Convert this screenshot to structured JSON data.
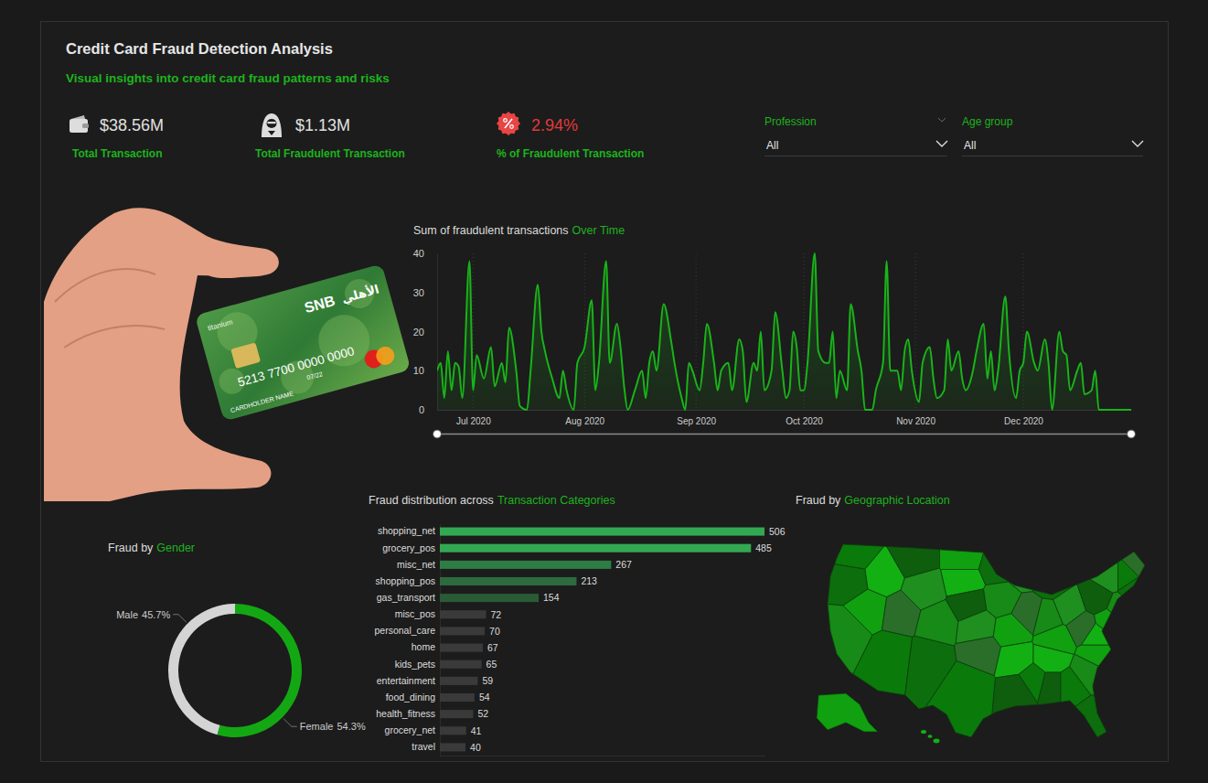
{
  "header": {
    "title": "Credit Card Fraud Detection Analysis",
    "subtitle": "Visual insights into credit card fraud patterns and risks"
  },
  "kpis": [
    {
      "value": "$38.56M",
      "label": "Total Transaction"
    },
    {
      "value": "$1.13M",
      "label": "Total Fraudulent Transaction"
    },
    {
      "value": "2.94%",
      "label": "% of Fraudulent Transaction"
    }
  ],
  "filters": [
    {
      "label": "Profession",
      "value": "All"
    },
    {
      "label": "Age group",
      "value": "All"
    }
  ],
  "card_image": {
    "tier": "titanium",
    "brand": "SNB",
    "brand_arabic": "الأهلي",
    "number": "5213 7700 0000 0000",
    "expiry": "07/22",
    "holder": "CARDHOLDER NAME"
  },
  "chart_data": [
    {
      "type": "line",
      "title": [
        "Sum of fraudulent transactions",
        "Over Time"
      ],
      "x": [
        173,
        174,
        175,
        176,
        177,
        178,
        179,
        180,
        182,
        183,
        184,
        186,
        188,
        189,
        191,
        192,
        193,
        195,
        196,
        198,
        199,
        201,
        202,
        203,
        205,
        207,
        208,
        209,
        211,
        212,
        214,
        216,
        217,
        218,
        220,
        221,
        223,
        224,
        225,
        226,
        228,
        230,
        231,
        232,
        233,
        234,
        236,
        238,
        239,
        241,
        242,
        243,
        244,
        246,
        247,
        248,
        250,
        251,
        252,
        254,
        255,
        257,
        258,
        259,
        261,
        262,
        263,
        264,
        266,
        267,
        269,
        270,
        271,
        272,
        273,
        274,
        275,
        276,
        278,
        279,
        281,
        282,
        283,
        284,
        285,
        287,
        288,
        290,
        291,
        292,
        294,
        295,
        297,
        298,
        299,
        301,
        302,
        303,
        304,
        305,
        307,
        308,
        310,
        311,
        312,
        314,
        315,
        316,
        318,
        319,
        320,
        322,
        323,
        325,
        326,
        327,
        328,
        329,
        331,
        332,
        334,
        335,
        336,
        337,
        339,
        340,
        342,
        343,
        344,
        346,
        347,
        348,
        349,
        351,
        352,
        353,
        355,
        356,
        357,
        359,
        362,
        366
      ],
      "values": [
        10,
        12,
        3,
        15,
        5,
        12,
        11,
        3,
        38,
        5,
        14,
        8,
        16,
        6,
        12,
        7,
        21,
        10,
        1,
        0,
        10,
        32,
        20,
        15,
        8,
        3,
        10,
        5,
        0,
        12,
        16,
        28,
        5,
        12,
        38,
        12,
        22,
        16,
        6,
        0,
        5,
        10,
        3,
        12,
        15,
        10,
        27,
        18,
        12,
        3,
        0,
        12,
        10,
        5,
        12,
        22,
        12,
        5,
        10,
        12,
        5,
        18,
        15,
        2,
        12,
        10,
        20,
        5,
        10,
        25,
        10,
        3,
        5,
        20,
        16,
        5,
        5,
        12,
        40,
        15,
        12,
        12,
        20,
        3,
        10,
        5,
        27,
        15,
        10,
        0,
        0,
        5,
        12,
        38,
        10,
        10,
        5,
        15,
        18,
        10,
        2,
        12,
        16,
        8,
        3,
        5,
        18,
        10,
        15,
        8,
        5,
        10,
        15,
        22,
        8,
        15,
        5,
        10,
        29,
        15,
        3,
        10,
        12,
        20,
        12,
        10,
        18,
        12,
        0,
        20,
        15,
        14,
        5,
        10,
        12,
        4,
        5,
        10,
        0,
        0,
        0,
        0
      ],
      "color": "#19b319",
      "xlim": [
        173,
        366
      ],
      "xticks": [
        {
          "value": 183,
          "label": "Jul 2020"
        },
        {
          "value": 214,
          "label": "Aug 2020"
        },
        {
          "value": 245,
          "label": "Sep 2020"
        },
        {
          "value": 275,
          "label": "Oct 2020"
        },
        {
          "value": 306,
          "label": "Nov 2020"
        },
        {
          "value": 336,
          "label": "Dec 2020"
        }
      ],
      "ylim": [
        0,
        40
      ],
      "yticks": [
        0,
        10,
        20,
        30,
        40
      ],
      "grid": "x"
    },
    {
      "type": "bar",
      "orientation": "horizontal",
      "title": [
        "Fraud distribution across",
        "Transaction Categories"
      ],
      "categories": [
        "shopping_net",
        "grocery_pos",
        "misc_net",
        "shopping_pos",
        "gas_transport",
        "misc_pos",
        "personal_care",
        "home",
        "kids_pets",
        "entertainment",
        "food_dining",
        "health_fitness",
        "grocery_net",
        "travel"
      ],
      "values": [
        506,
        485,
        267,
        213,
        154,
        72,
        70,
        67,
        65,
        59,
        54,
        52,
        41,
        40
      ],
      "colors": [
        "#33a852",
        "#33a852",
        "#2d7d45",
        "#2c6b3d",
        "#2a5b36",
        "#3a3a3a",
        "#3a3a3a",
        "#3a3a3a",
        "#3a3a3a",
        "#3a3a3a",
        "#3a3a3a",
        "#3a3a3a",
        "#3a3a3a",
        "#3a3a3a"
      ],
      "xlim": [
        0,
        506
      ],
      "data_labels": true,
      "tick_labels": "y"
    },
    {
      "type": "donut",
      "title": [
        "Fraud by",
        "Gender"
      ],
      "categories": [
        "Female",
        "Male"
      ],
      "values": [
        54.3,
        45.7
      ],
      "value_labels": [
        "54.3%",
        "45.7%"
      ],
      "colors": [
        "#13a813",
        "#d4d4d4"
      ],
      "data_labels": true
    },
    {
      "type": "map",
      "title": [
        "Fraud by",
        "Geographic Location"
      ]
    }
  ]
}
